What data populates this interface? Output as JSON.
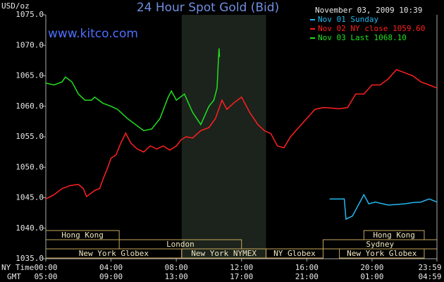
{
  "chart_data": {
    "type": "line",
    "title": "24 Hour Spot Gold (Bid)",
    "y_label": "USD/oz",
    "site": "www.kitco.com",
    "timestamp": "November 03, 2009 10:39",
    "x_label": "NY Time",
    "x2_label": "GMT",
    "xlim": [
      0,
      23.98
    ],
    "xticks": [
      {
        "value": 0,
        "label": "00:00"
      },
      {
        "value": 4,
        "label": "04:00"
      },
      {
        "value": 8,
        "label": "08:00"
      },
      {
        "value": 12,
        "label": "12:00"
      },
      {
        "value": 16,
        "label": "16:00"
      },
      {
        "value": 20,
        "label": "20:00"
      },
      {
        "value": 23.98,
        "label": "23:59"
      }
    ],
    "x2tick_labels": [
      "05:00",
      "09:00",
      "13:00",
      "17:00",
      "21:00",
      "01:00",
      "04:59"
    ],
    "ylim": [
      1035,
      1075
    ],
    "yticks": [
      {
        "value": 1035,
        "label": "1035.0"
      },
      {
        "value": 1040,
        "label": "1040.0"
      },
      {
        "value": 1045,
        "label": "1045.0"
      },
      {
        "value": 1050,
        "label": "1050.0"
      },
      {
        "value": 1055,
        "label": "1055.0"
      },
      {
        "value": 1060,
        "label": "1060.0"
      },
      {
        "value": 1065,
        "label": "1065.0"
      },
      {
        "value": 1070,
        "label": "1070.0"
      },
      {
        "value": 1075,
        "label": "1075.0"
      }
    ],
    "shaded_span": [
      8.33,
      13.5
    ],
    "sessions": [
      {
        "label": "Hong Kong",
        "start": 0,
        "end": 4.5
      },
      {
        "label": "New York Globex",
        "start": 0,
        "end": 8.33
      },
      {
        "label": "London",
        "start": 4.5,
        "end": 12
      },
      {
        "label": "New York NYMEX",
        "start": 8.33,
        "end": 13.5
      },
      {
        "label": "NY Globex",
        "start": 13.5,
        "end": 17
      },
      {
        "label": "Sydney",
        "start": 17,
        "end": 23.98
      },
      {
        "label": "Hong Kong",
        "start": 19.5,
        "end": 23.2
      },
      {
        "label": "New York Globex",
        "start": 18,
        "end": 23.2
      }
    ],
    "series": [
      {
        "name": "Nov 01 Sunday",
        "color": "#22b8f0",
        "x": [
          17.4,
          18.3,
          18.4,
          18.8,
          19.2,
          19.5,
          19.8,
          20.2,
          21,
          22,
          22.5,
          23,
          23.5,
          23.98
        ],
        "values": [
          1044.8,
          1044.8,
          1041.5,
          1042,
          1044,
          1045.5,
          1044,
          1044.3,
          1043.8,
          1044,
          1044.2,
          1044.3,
          1044.8,
          1044.3
        ]
      },
      {
        "name": "Nov 02 NY close 1059.60",
        "color": "#ff2020",
        "x": [
          0,
          0.5,
          1,
          1.5,
          2,
          2.3,
          2.5,
          3,
          3.3,
          3.5,
          3.8,
          4,
          4.3,
          4.6,
          4.9,
          5.2,
          5.6,
          6,
          6.4,
          6.8,
          7.2,
          7.6,
          8,
          8.3,
          8.6,
          9,
          9.5,
          10,
          10.4,
          10.8,
          11.1,
          11.5,
          12,
          12.5,
          13,
          13.4,
          13.8,
          14.2,
          14.6,
          15,
          15.5,
          16,
          16.5,
          17,
          17.5,
          18,
          18.5,
          19,
          19.5,
          20,
          20.5,
          21,
          21.5,
          22,
          22.5,
          23,
          23.5,
          23.98
        ],
        "values": [
          1044.8,
          1045.5,
          1046.5,
          1047,
          1047.2,
          1046.5,
          1045.2,
          1046.2,
          1046.5,
          1048,
          1050,
          1051.5,
          1052,
          1054,
          1055.6,
          1054,
          1053,
          1052.5,
          1053.5,
          1053,
          1053.5,
          1052.8,
          1053.5,
          1054.5,
          1055,
          1054.8,
          1056,
          1056.5,
          1058,
          1061,
          1059.5,
          1060.5,
          1061.5,
          1059,
          1057,
          1056,
          1055.5,
          1053.5,
          1053.2,
          1055,
          1056.5,
          1058,
          1059.5,
          1059.8,
          1059.7,
          1059.6,
          1059.8,
          1062,
          1062,
          1063.5,
          1063.5,
          1064.5,
          1066,
          1065.5,
          1065,
          1064,
          1063.5,
          1063
        ]
      },
      {
        "name": "Nov 03 Last 1068.10",
        "color": "#20e020",
        "x": [
          0,
          0.5,
          1,
          1.2,
          1.6,
          2,
          2.4,
          2.8,
          3,
          3.5,
          4,
          4.4,
          5,
          5.5,
          6,
          6.5,
          7,
          7.5,
          7.7,
          8,
          8.5,
          9,
          9.5,
          10,
          10.3,
          10.5,
          10.55,
          10.62,
          10.65
        ],
        "values": [
          1063.8,
          1063.5,
          1064,
          1064.8,
          1064,
          1062,
          1061,
          1061,
          1061.5,
          1060.5,
          1060,
          1059.5,
          1058,
          1057,
          1056,
          1056.3,
          1058,
          1061.5,
          1062.5,
          1061,
          1062,
          1059,
          1057,
          1060,
          1061,
          1063,
          1066,
          1069.5,
          1068.1
        ]
      }
    ]
  }
}
